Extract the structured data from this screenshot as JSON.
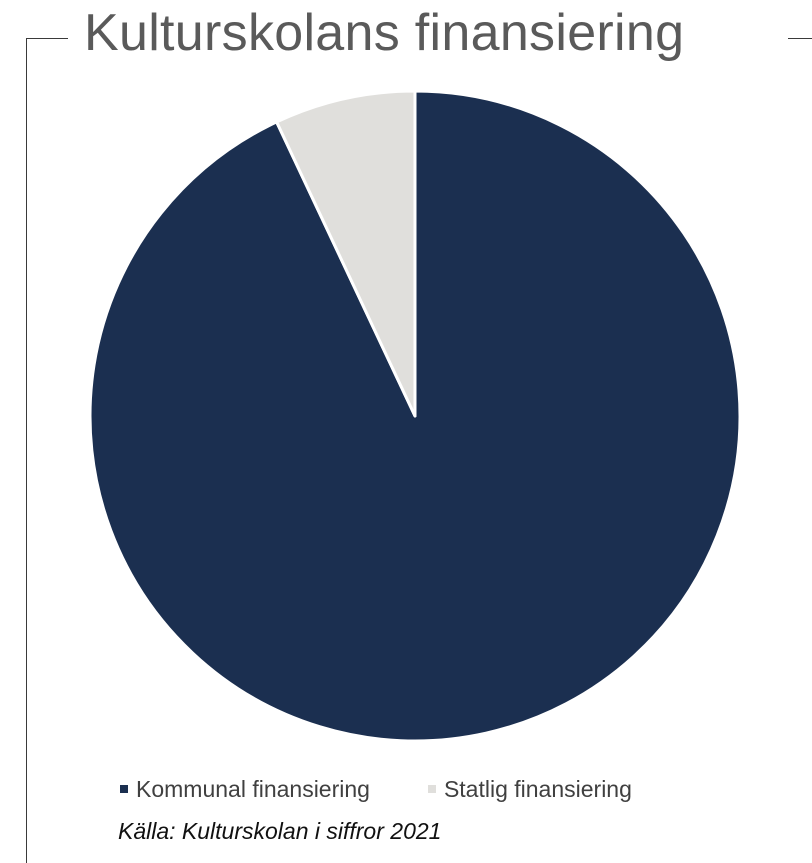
{
  "chart_data": {
    "type": "pie",
    "title": "Kulturskolans finansiering",
    "categories": [
      "Kommunal finansiering",
      "Statlig finansiering"
    ],
    "values": [
      93,
      7
    ],
    "colors": [
      "#1b2f50",
      "#e0dfdc"
    ],
    "start_angle": "12 o'clock",
    "direction": "clockwise",
    "legend_position": "bottom",
    "source": "Källa: Kulturskolan i siffror 2021"
  }
}
